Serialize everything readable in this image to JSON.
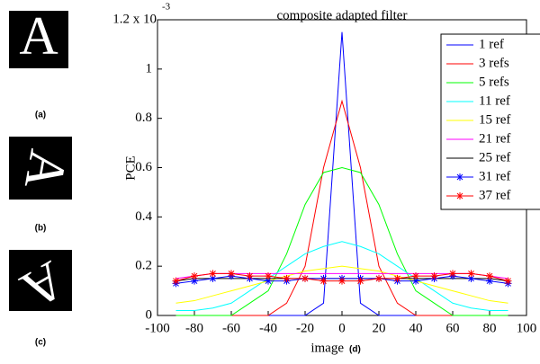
{
  "panels": [
    {
      "letter": "A",
      "label": "(a)"
    },
    {
      "letter": "A",
      "label": "(b)"
    },
    {
      "letter": "A",
      "label": "(c)"
    }
  ],
  "chart_data": {
    "type": "line",
    "title": "composite adapted filter",
    "x_label": "image",
    "annotation": "(d)",
    "y_label": "PCE",
    "y_exponent": "-3",
    "x": [
      -90,
      -80,
      -70,
      -60,
      -50,
      -40,
      -30,
      -20,
      -10,
      0,
      10,
      20,
      30,
      40,
      50,
      60,
      70,
      80,
      90
    ],
    "xlim": [
      -100,
      100
    ],
    "xticks": [
      -100,
      -80,
      -60,
      -40,
      -20,
      0,
      20,
      40,
      60,
      80,
      100
    ],
    "ylim": [
      0,
      1.2
    ],
    "yticks": [
      0,
      0.2,
      0.4,
      0.6,
      0.8,
      1,
      {
        "value": 1.2,
        "label": "1.2 x 10"
      }
    ],
    "series": [
      {
        "name": "1 ref",
        "color": "#0000ff",
        "marker": null,
        "values": [
          0,
          0,
          0,
          0,
          0,
          0,
          0,
          0,
          0.05,
          1.15,
          0.05,
          0,
          0,
          0,
          0,
          0,
          0,
          0,
          0
        ]
      },
      {
        "name": "3 refs",
        "color": "#ff0000",
        "marker": null,
        "values": [
          0,
          0,
          0,
          0,
          0,
          0,
          0.05,
          0.2,
          0.6,
          0.87,
          0.6,
          0.2,
          0.05,
          0,
          0,
          0,
          0,
          0,
          0
        ]
      },
      {
        "name": "5 refs",
        "color": "#00ff00",
        "marker": null,
        "values": [
          0,
          0,
          0,
          0,
          0.05,
          0.1,
          0.25,
          0.45,
          0.58,
          0.6,
          0.58,
          0.45,
          0.25,
          0.1,
          0.05,
          0,
          0,
          0,
          0
        ]
      },
      {
        "name": "11 ref",
        "color": "#00ffff",
        "marker": null,
        "values": [
          0.02,
          0.02,
          0.03,
          0.05,
          0.1,
          0.15,
          0.2,
          0.25,
          0.28,
          0.3,
          0.28,
          0.25,
          0.2,
          0.15,
          0.1,
          0.05,
          0.03,
          0.02,
          0.02
        ]
      },
      {
        "name": "15 ref",
        "color": "#ffff00",
        "marker": null,
        "values": [
          0.05,
          0.06,
          0.08,
          0.1,
          0.12,
          0.14,
          0.16,
          0.18,
          0.19,
          0.2,
          0.19,
          0.18,
          0.16,
          0.14,
          0.12,
          0.1,
          0.08,
          0.06,
          0.05
        ]
      },
      {
        "name": "21 ref",
        "color": "#ff00ff",
        "marker": null,
        "values": [
          0.15,
          0.16,
          0.17,
          0.17,
          0.17,
          0.17,
          0.17,
          0.17,
          0.17,
          0.17,
          0.17,
          0.17,
          0.17,
          0.17,
          0.17,
          0.17,
          0.17,
          0.16,
          0.15
        ]
      },
      {
        "name": "25 ref",
        "color": "#000000",
        "marker": null,
        "values": [
          0.14,
          0.15,
          0.15,
          0.15,
          0.15,
          0.15,
          0.15,
          0.15,
          0.15,
          0.15,
          0.15,
          0.15,
          0.15,
          0.15,
          0.15,
          0.15,
          0.15,
          0.15,
          0.14
        ]
      },
      {
        "name": "31 ref",
        "color": "#0000ff",
        "marker": "*",
        "values": [
          0.13,
          0.14,
          0.15,
          0.16,
          0.15,
          0.14,
          0.14,
          0.15,
          0.15,
          0.15,
          0.15,
          0.15,
          0.14,
          0.14,
          0.15,
          0.16,
          0.15,
          0.14,
          0.13
        ]
      },
      {
        "name": "37 ref",
        "color": "#ff0000",
        "marker": "*",
        "values": [
          0.14,
          0.16,
          0.17,
          0.17,
          0.16,
          0.16,
          0.15,
          0.15,
          0.14,
          0.14,
          0.14,
          0.15,
          0.15,
          0.16,
          0.16,
          0.17,
          0.17,
          0.16,
          0.14
        ]
      }
    ]
  }
}
